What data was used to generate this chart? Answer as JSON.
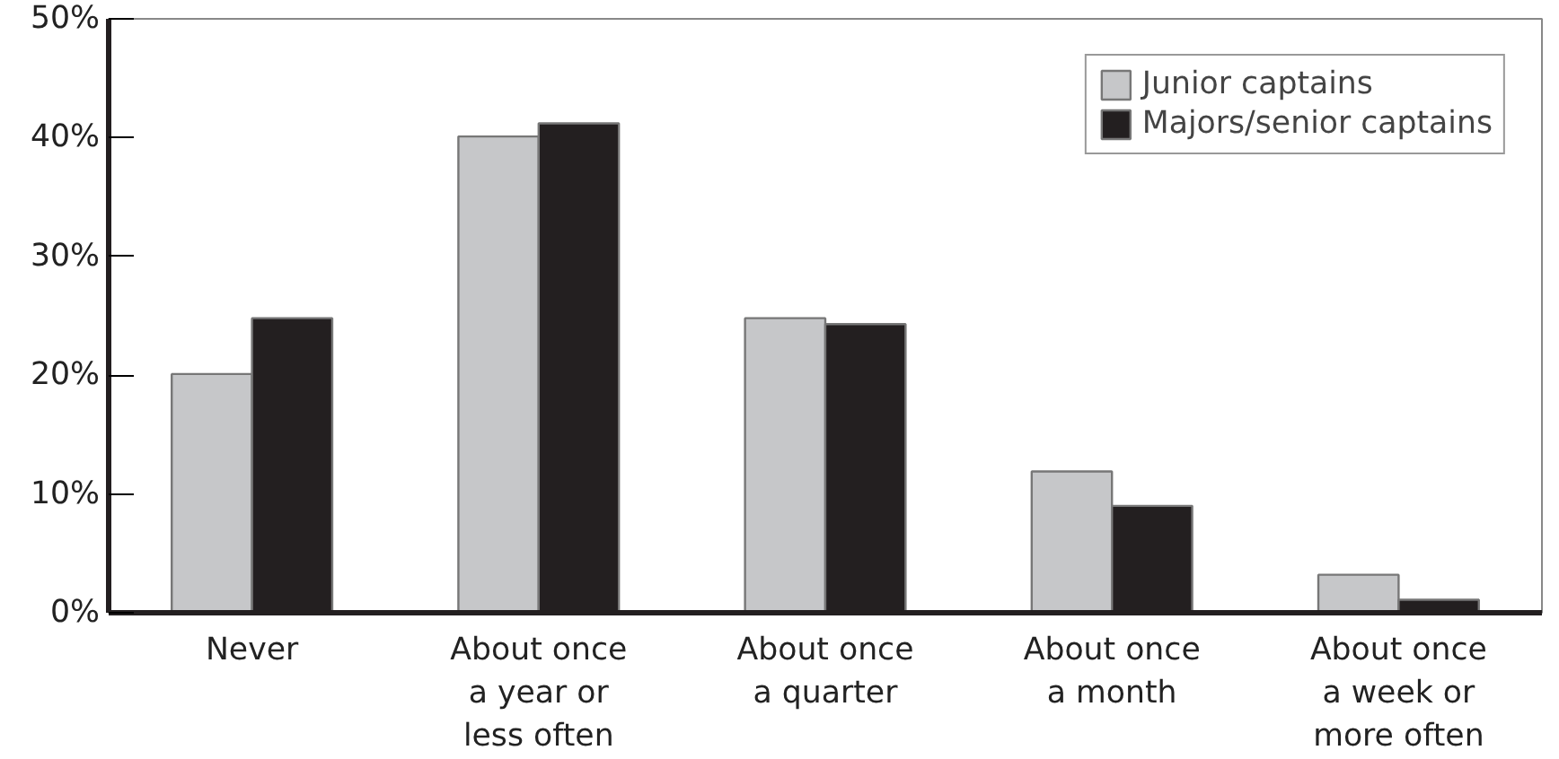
{
  "chart_data": {
    "type": "bar",
    "categories": [
      "Never",
      "About once\na year or\nless often",
      "About once\na quarter",
      "About once\na month",
      "About once\na week or\nmore often"
    ],
    "series": [
      {
        "name": "Junior captains",
        "color": "#c6c7c9",
        "values": [
          20.1,
          40.1,
          24.8,
          11.9,
          3.2
        ]
      },
      {
        "name": "Majors/senior captains",
        "color": "#231f20",
        "values": [
          24.8,
          41.2,
          24.3,
          9.0,
          1.1
        ]
      }
    ],
    "ylim": [
      0,
      50
    ],
    "yticks": [
      {
        "value": 0,
        "label": "0%"
      },
      {
        "value": 10,
        "label": "10%"
      },
      {
        "value": 20,
        "label": "20%"
      },
      {
        "value": 30,
        "label": "30%"
      },
      {
        "value": 40,
        "label": "40%"
      },
      {
        "value": 50,
        "label": "50%"
      }
    ],
    "grid": false,
    "legend": "top right"
  }
}
